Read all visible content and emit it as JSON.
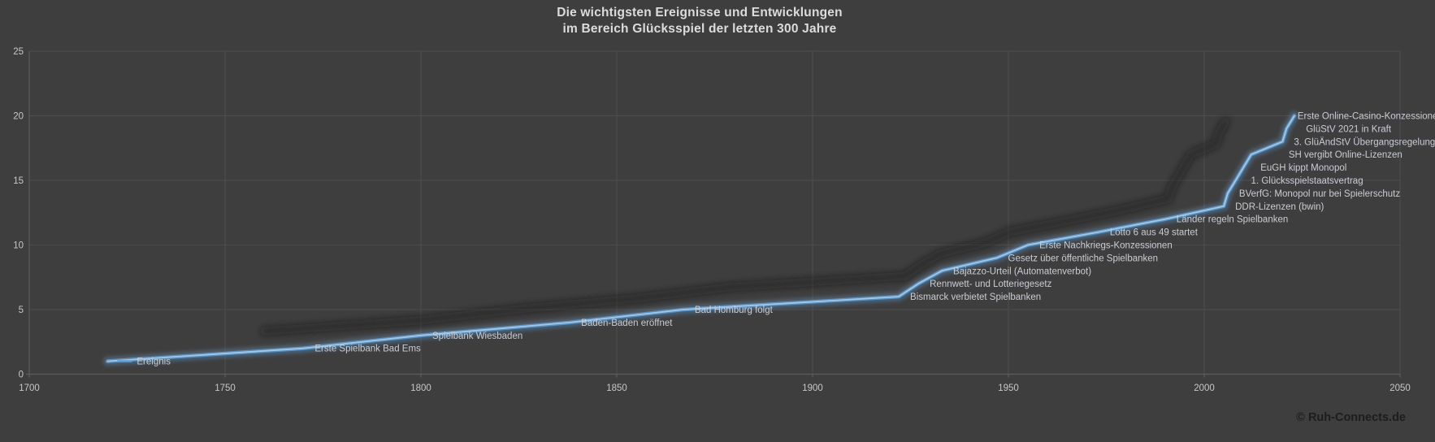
{
  "title": {
    "line1": "Die wichtigsten Ereignisse und Entwicklungen",
    "line2": "im Bereich Glücksspiel der letzten 300 Jahre"
  },
  "copyright": "© Ruh-Connects.de",
  "chart_data": {
    "type": "line",
    "title": "Die wichtigsten Ereignisse und Entwicklungen im Bereich Glücksspiel der letzten 300 Jahre",
    "series_name": "Ereignis",
    "xlim": [
      1700,
      2050
    ],
    "ylim": [
      0,
      25
    ],
    "x_ticks": [
      1700,
      1750,
      1800,
      1850,
      1900,
      1950,
      2000,
      2050
    ],
    "y_ticks": [
      0,
      5,
      10,
      15,
      20,
      25
    ],
    "grid": true,
    "legend": "none",
    "events": [
      {
        "year": 1720,
        "value": 1,
        "label": "Ereignis",
        "legend_key": true
      },
      {
        "year": 1770,
        "value": 2,
        "label": "Erste Spielbank Bad Ems"
      },
      {
        "year": 1800,
        "value": 3,
        "label": "Spielbank Wiesbaden"
      },
      {
        "year": 1838,
        "value": 4,
        "label": "Baden-Baden eröffnet"
      },
      {
        "year": 1867,
        "value": 5,
        "label": "Bad Homburg folgt"
      },
      {
        "year": 1922,
        "value": 6,
        "label": "Bismarck verbietet Spielbanken"
      },
      {
        "year": 1927,
        "value": 7,
        "label": "Rennwett- und Lotteriegesetz"
      },
      {
        "year": 1933,
        "value": 8,
        "label": "Bajazzo-Urteil (Automatenverbot)"
      },
      {
        "year": 1947,
        "value": 9,
        "label": "Gesetz über öffentliche Spielbanken"
      },
      {
        "year": 1955,
        "value": 10,
        "label": "Erste Nachkriegs-Konzessionen"
      },
      {
        "year": 1973,
        "value": 11,
        "label": "Lotto 6 aus 49 startet"
      },
      {
        "year": 1990,
        "value": 12,
        "label": "Länder regeln Spielbanken"
      },
      {
        "year": 2005,
        "value": 13,
        "label": "DDR-Lizenzen (bwin)"
      },
      {
        "year": 2006,
        "value": 14,
        "label": "BVerfG: Monopol nur bei Spielerschutz"
      },
      {
        "year": 2008,
        "value": 15,
        "label": "1. Glücksspielstaatsvertrag",
        "dx": 19
      },
      {
        "year": 2010,
        "value": 16,
        "label": "EuGH kippt Monopol",
        "dx": 21
      },
      {
        "year": 2012,
        "value": 17,
        "label": "SH vergibt Online-Lizenzen",
        "dx": 46
      },
      {
        "year": 2020,
        "value": 18,
        "label": "3. GlüÄndStV Übergangsregelung"
      },
      {
        "year": 2021,
        "value": 19,
        "label": "GlüStV 2021 in Kraft",
        "dx": 24
      },
      {
        "year": 2023,
        "value": 20,
        "label": "Erste Online-Casino-Konzessionen",
        "dx": 4
      }
    ],
    "colors": {
      "background": "#3e3e3e",
      "gridline": "#4d4d4d",
      "axis_line": "#5c5c5c",
      "tick_label": "#c7c7c7",
      "title": "#dcdcdc",
      "event_label": "#c9cdd2",
      "line_core": "#a6cbe9",
      "line_mid": "#5b9bd5",
      "line_glow": "#6ea7d8",
      "shadow": "#141414",
      "copyright": "#1d1d1d"
    }
  }
}
